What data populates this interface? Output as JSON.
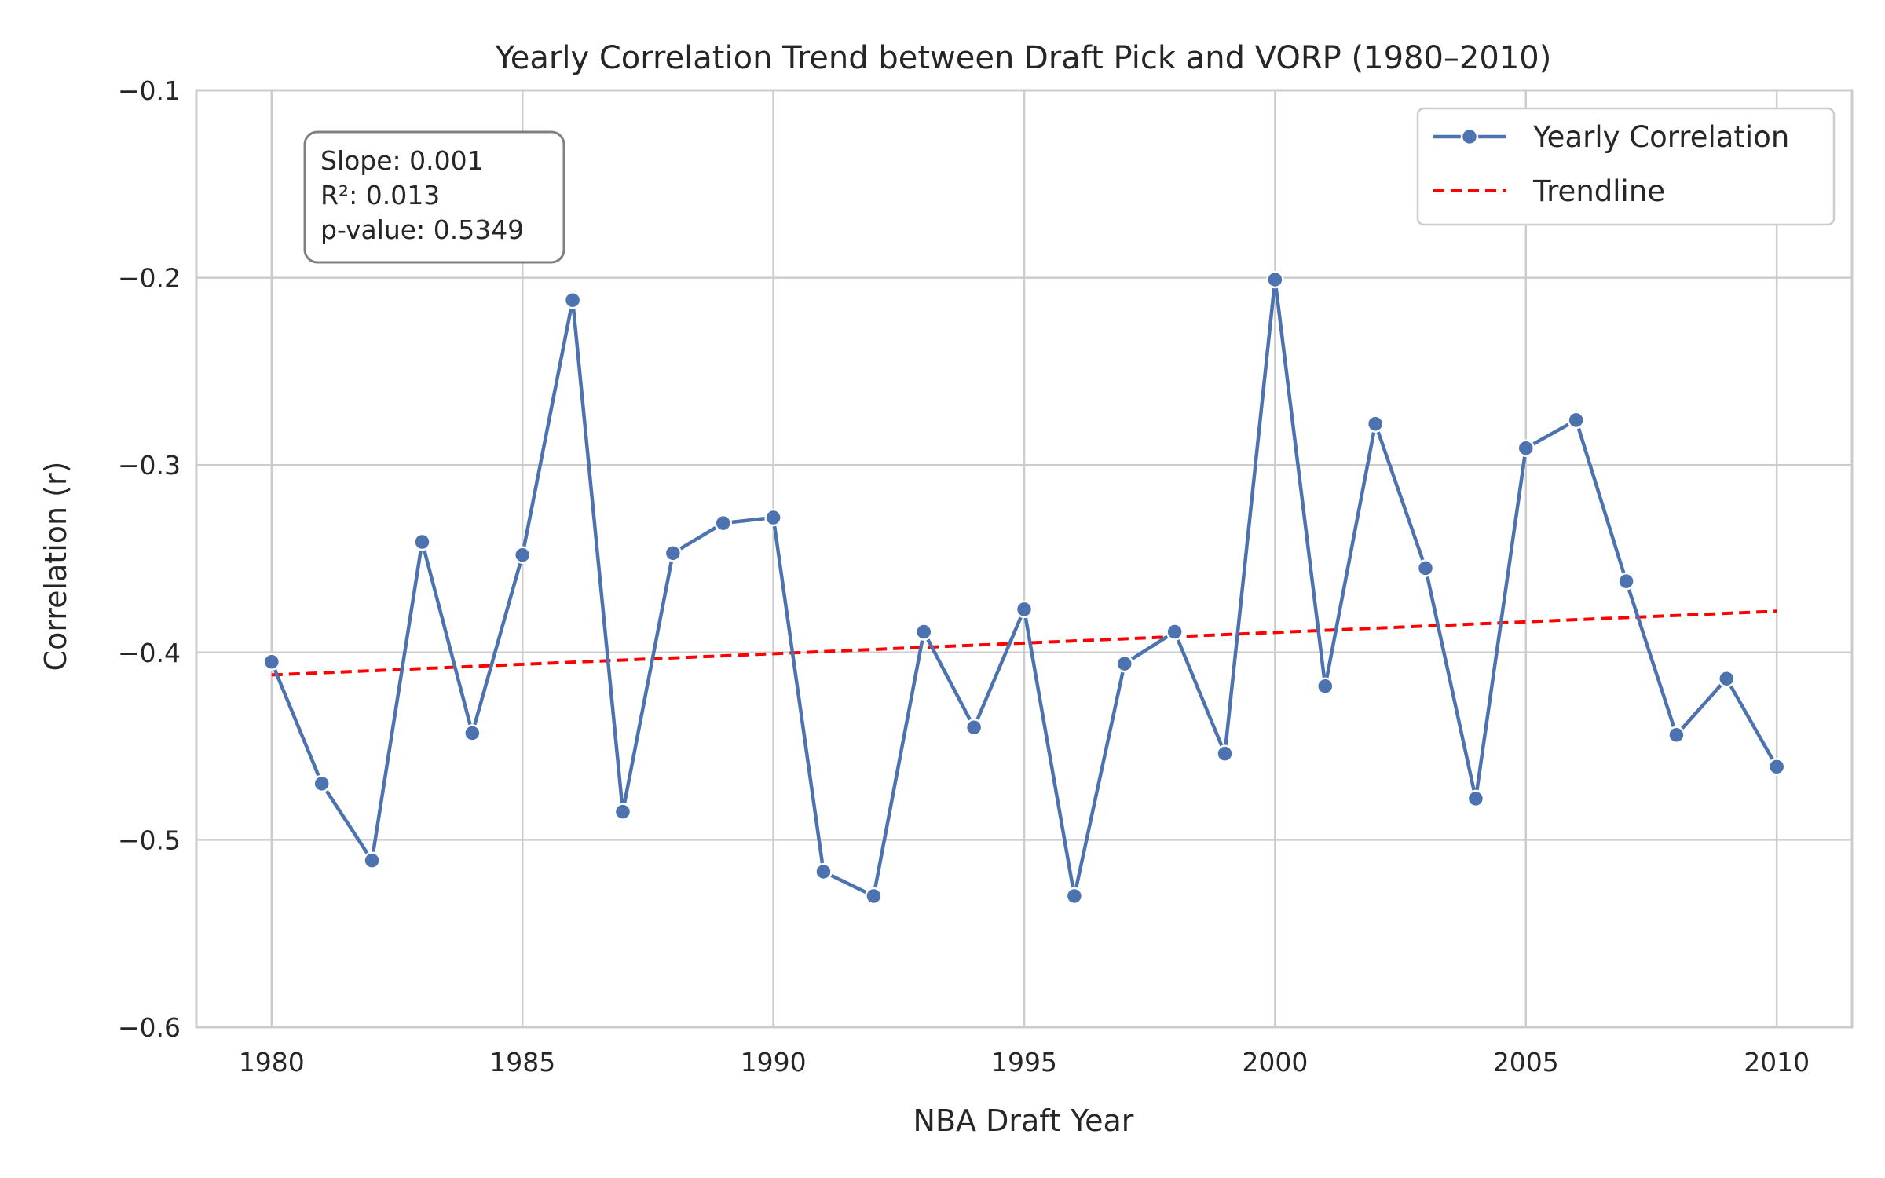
{
  "chart_data": {
    "type": "line",
    "title": "Yearly Correlation Trend between Draft Pick and VORP (1980–2010)",
    "xlabel": "NBA Draft Year",
    "ylabel": "Correlation (r)",
    "xlim": [
      1978.5,
      2011.5
    ],
    "ylim": [
      -0.6,
      -0.1
    ],
    "x_ticks": [
      1980,
      1985,
      1990,
      1995,
      2000,
      2005,
      2010
    ],
    "y_ticks": [
      -0.6,
      -0.5,
      -0.4,
      -0.3,
      -0.2,
      -0.1
    ],
    "x_tick_labels": [
      "1980",
      "1985",
      "1990",
      "1995",
      "2000",
      "2005",
      "2010"
    ],
    "y_tick_labels": [
      "−0.6",
      "−0.5",
      "−0.4",
      "−0.3",
      "−0.2",
      "−0.1"
    ],
    "grid": true,
    "legend_position": "top-right",
    "series": [
      {
        "name": "Yearly Correlation",
        "style": "solid line with circle markers",
        "color": "#4c72b0",
        "x": [
          1980,
          1981,
          1982,
          1983,
          1984,
          1985,
          1986,
          1987,
          1988,
          1989,
          1990,
          1991,
          1992,
          1993,
          1994,
          1995,
          1996,
          1997,
          1998,
          1999,
          2000,
          2001,
          2002,
          2003,
          2004,
          2005,
          2006,
          2007,
          2008,
          2009,
          2010
        ],
        "y": [
          -0.405,
          -0.47,
          -0.511,
          -0.341,
          -0.443,
          -0.348,
          -0.212,
          -0.485,
          -0.347,
          -0.331,
          -0.328,
          -0.517,
          -0.53,
          -0.389,
          -0.44,
          -0.377,
          -0.53,
          -0.406,
          -0.389,
          -0.454,
          -0.201,
          -0.418,
          -0.278,
          -0.355,
          -0.478,
          -0.291,
          -0.276,
          -0.362,
          -0.444,
          -0.414,
          -0.461
        ]
      },
      {
        "name": "Trendline",
        "style": "dashed line",
        "color": "#ff0000",
        "x": [
          1980,
          2010
        ],
        "y": [
          -0.412,
          -0.378
        ]
      }
    ],
    "annotation": {
      "lines": [
        "Slope: 0.001",
        "R²: 0.013",
        "p-value: 0.5349"
      ],
      "position": "top-left"
    }
  }
}
